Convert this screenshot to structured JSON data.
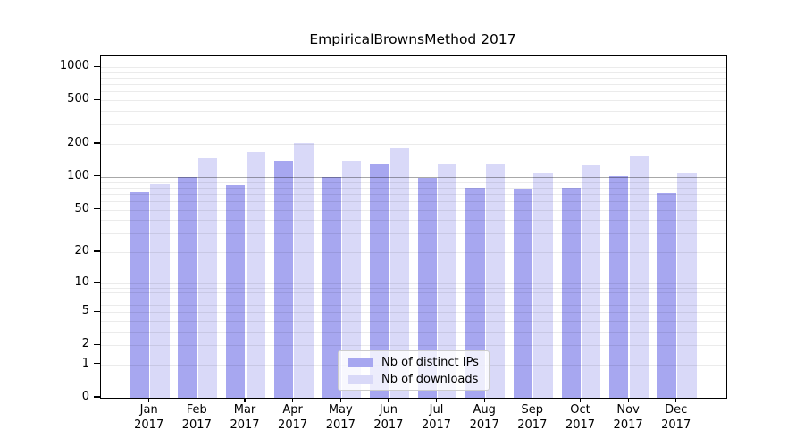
{
  "title": "EmpiricalBrownsMethod 2017",
  "chart_data": {
    "type": "bar",
    "title": "EmpiricalBrownsMethod 2017",
    "categories": [
      "Jan",
      "Feb",
      "Mar",
      "Apr",
      "May",
      "Jun",
      "Jul",
      "Aug",
      "Sep",
      "Oct",
      "Nov",
      "Dec"
    ],
    "year": "2017",
    "series": [
      {
        "name": "Nb of distinct IPs",
        "color": "#a7a7f0",
        "values": [
          72,
          100,
          84,
          140,
          100,
          130,
          98,
          79,
          78,
          80,
          102,
          71
        ]
      },
      {
        "name": "Nb of downloads",
        "color": "#d9d9f8",
        "values": [
          86,
          148,
          169,
          203,
          140,
          187,
          133,
          133,
          107,
          128,
          158,
          109
        ]
      }
    ],
    "xlabel": "",
    "ylabel": "",
    "yscale": "log1p",
    "ylim": [
      0,
      1253
    ],
    "yticks": [
      0,
      1,
      2,
      5,
      10,
      20,
      50,
      100,
      200,
      500,
      1000
    ],
    "minor_gridlines": [
      1,
      2,
      3,
      4,
      5,
      6,
      7,
      8,
      9,
      10,
      20,
      30,
      40,
      50,
      60,
      70,
      80,
      90,
      200,
      300,
      400,
      500,
      600,
      700,
      800,
      900,
      1000
    ],
    "ref_line": 100,
    "grid_on": true,
    "legend_position": "lower center",
    "colors": {
      "distinct_ips_bar": "#a7a7f0",
      "downloads_bar": "#d9d9f8",
      "ref_line_gray": "#a9a9a9",
      "minor_grid": "#ebebeb",
      "axis": "#000000"
    }
  },
  "legend": {
    "items": [
      {
        "label": "Nb of distinct IPs"
      },
      {
        "label": "Nb of downloads"
      }
    ]
  }
}
